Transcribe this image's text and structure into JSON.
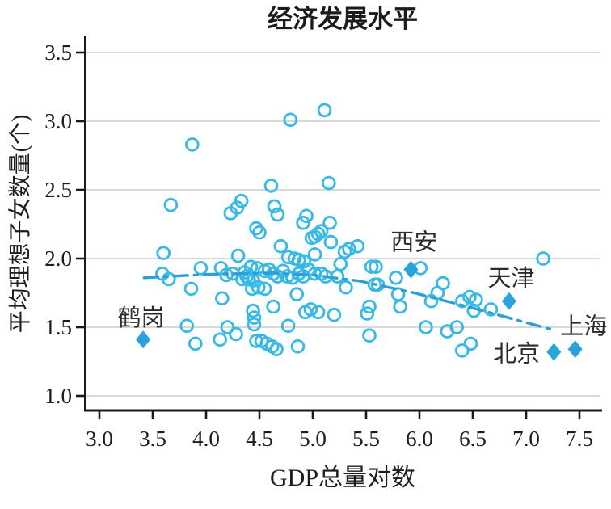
{
  "chart_data": {
    "type": "scatter",
    "title": "经济发展水平",
    "xlabel": "GDP总量对数",
    "ylabel": "平均理想子女数量(个)",
    "x_tick_labels": [
      "3.0",
      "3.5",
      "4.0",
      "4.5",
      "5.0",
      "5.5",
      "6.0",
      "6.5",
      "7.0",
      "7.5"
    ],
    "y_tick_labels": [
      "1.0",
      "1.5",
      "2.0",
      "2.5",
      "3.0",
      "3.5"
    ],
    "xlim": [
      2.86,
      7.69
    ],
    "ylim": [
      0.89,
      3.62
    ],
    "grid": {
      "horizontal": true,
      "vertical": false
    },
    "legend": "none",
    "series": [
      {
        "name": "cities-scatter",
        "marker": "open-circle",
        "color": "#35b9e9",
        "points": [
          [
            5.11,
            3.08
          ],
          [
            4.79,
            3.01
          ],
          [
            3.87,
            2.83
          ],
          [
            5.15,
            2.55
          ],
          [
            4.61,
            2.53
          ],
          [
            4.33,
            2.42
          ],
          [
            3.67,
            2.39
          ],
          [
            4.64,
            2.38
          ],
          [
            4.29,
            2.37
          ],
          [
            4.23,
            2.33
          ],
          [
            4.67,
            2.32
          ],
          [
            4.94,
            2.31
          ],
          [
            4.91,
            2.26
          ],
          [
            5.16,
            2.26
          ],
          [
            4.47,
            2.22
          ],
          [
            4.5,
            2.19
          ],
          [
            5.08,
            2.2
          ],
          [
            3.6,
            2.04
          ],
          [
            4.3,
            2.02
          ],
          [
            4.7,
            2.09
          ],
          [
            4.99,
            2.15
          ],
          [
            5.02,
            2.16
          ],
          [
            5.05,
            2.18
          ],
          [
            5.17,
            2.12
          ],
          [
            5.3,
            2.05
          ],
          [
            5.34,
            2.07
          ],
          [
            5.42,
            2.09
          ],
          [
            4.77,
            2.01
          ],
          [
            4.83,
            2.0
          ],
          [
            4.87,
            1.99
          ],
          [
            4.92,
            1.98
          ],
          [
            5.02,
            2.03
          ],
          [
            7.16,
            2.0
          ],
          [
            3.59,
            1.89
          ],
          [
            3.65,
            1.85
          ],
          [
            3.95,
            1.93
          ],
          [
            4.14,
            1.93
          ],
          [
            4.19,
            1.88
          ],
          [
            4.25,
            1.89
          ],
          [
            4.36,
            1.9
          ],
          [
            4.38,
            1.87
          ],
          [
            4.34,
            1.85
          ],
          [
            4.4,
            1.85
          ],
          [
            4.44,
            1.84
          ],
          [
            4.42,
            1.94
          ],
          [
            4.48,
            1.93
          ],
          [
            4.55,
            1.91
          ],
          [
            4.59,
            1.92
          ],
          [
            4.63,
            1.89
          ],
          [
            4.67,
            1.87
          ],
          [
            4.72,
            1.91
          ],
          [
            4.76,
            1.87
          ],
          [
            4.81,
            1.86
          ],
          [
            4.87,
            1.89
          ],
          [
            4.91,
            1.87
          ],
          [
            4.96,
            1.92
          ],
          [
            5.02,
            1.89
          ],
          [
            5.08,
            1.89
          ],
          [
            5.12,
            1.87
          ],
          [
            5.23,
            1.87
          ],
          [
            5.26,
            1.96
          ],
          [
            5.55,
            1.94
          ],
          [
            5.59,
            1.94
          ],
          [
            6.01,
            1.93
          ],
          [
            5.78,
            1.86
          ],
          [
            3.86,
            1.78
          ],
          [
            4.15,
            1.71
          ],
          [
            4.43,
            1.78
          ],
          [
            4.49,
            1.79
          ],
          [
            4.55,
            1.78
          ],
          [
            4.85,
            1.74
          ],
          [
            5.31,
            1.79
          ],
          [
            5.58,
            1.81
          ],
          [
            5.61,
            1.81
          ],
          [
            5.8,
            1.74
          ],
          [
            6.22,
            1.82
          ],
          [
            6.17,
            1.75
          ],
          [
            6.11,
            1.69
          ],
          [
            6.4,
            1.69
          ],
          [
            6.47,
            1.72
          ],
          [
            6.53,
            1.7
          ],
          [
            6.51,
            1.62
          ],
          [
            6.67,
            1.63
          ],
          [
            4.63,
            1.65
          ],
          [
            4.44,
            1.62
          ],
          [
            4.45,
            1.57
          ],
          [
            4.93,
            1.61
          ],
          [
            4.98,
            1.63
          ],
          [
            5.05,
            1.61
          ],
          [
            5.2,
            1.59
          ],
          [
            5.51,
            1.6
          ],
          [
            5.53,
            1.65
          ],
          [
            5.82,
            1.65
          ],
          [
            4.45,
            1.52
          ],
          [
            3.82,
            1.51
          ],
          [
            4.2,
            1.5
          ],
          [
            4.77,
            1.51
          ],
          [
            6.06,
            1.5
          ],
          [
            6.35,
            1.5
          ],
          [
            6.26,
            1.47
          ],
          [
            4.28,
            1.45
          ],
          [
            5.53,
            1.44
          ],
          [
            4.13,
            1.41
          ],
          [
            3.9,
            1.38
          ],
          [
            4.47,
            1.4
          ],
          [
            4.52,
            1.4
          ],
          [
            4.57,
            1.38
          ],
          [
            4.62,
            1.36
          ],
          [
            4.66,
            1.34
          ],
          [
            4.86,
            1.36
          ],
          [
            6.48,
            1.38
          ],
          [
            6.4,
            1.33
          ]
        ]
      }
    ],
    "labeled_points": [
      {
        "label": "鹤岗",
        "x": 3.41,
        "y": 1.41,
        "label_x": 3.39,
        "label_y": 1.57
      },
      {
        "label": "西安",
        "x": 5.92,
        "y": 1.92,
        "label_x": 5.95,
        "label_y": 2.12
      },
      {
        "label": "天津",
        "x": 6.84,
        "y": 1.69,
        "label_x": 6.86,
        "label_y": 1.86
      },
      {
        "label": "北京",
        "x": 7.26,
        "y": 1.32,
        "label_x": 6.91,
        "label_y": 1.31
      },
      {
        "label": "上海",
        "x": 7.46,
        "y": 1.34,
        "label_x": 7.54,
        "label_y": 1.51
      }
    ],
    "trend_line": {
      "style": "dash-dot",
      "points": [
        [
          3.42,
          1.86
        ],
        [
          4.0,
          1.885
        ],
        [
          4.6,
          1.895
        ],
        [
          5.0,
          1.88
        ],
        [
          5.45,
          1.835
        ],
        [
          5.95,
          1.75
        ],
        [
          6.5,
          1.64
        ],
        [
          6.9,
          1.555
        ],
        [
          7.28,
          1.475
        ]
      ]
    },
    "colors": {
      "circle_stroke": "#35b9e9",
      "diamond_fill": "#29a3dc",
      "trend_line": "#2a9fd9",
      "grid": "#cccccc",
      "axis": "#1a1a1a",
      "label_text": "#2b2b2b"
    }
  }
}
